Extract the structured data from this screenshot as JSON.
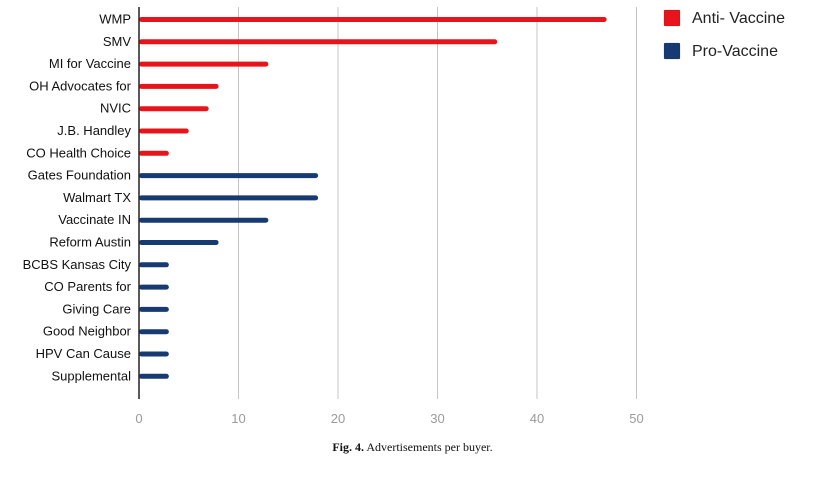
{
  "chart_data": {
    "type": "bar",
    "orientation": "horizontal",
    "categories": [
      "WMP",
      "SMV",
      "MI for Vaccine",
      "OH Advocates for",
      "NVIC",
      "J.B. Handley",
      "CO Health Choice",
      "Gates Foundation",
      "Walmart TX",
      "Vaccinate IN",
      "Reform Austin",
      "BCBS Kansas City",
      "CO Parents for",
      "Giving Care",
      "Good Neighbor",
      "HPV Can Cause",
      "Supplemental"
    ],
    "series": [
      {
        "name": "Anti- Vaccine",
        "color": "#e8141c",
        "values": [
          47,
          36,
          13,
          8,
          7,
          5,
          3,
          null,
          null,
          null,
          null,
          null,
          null,
          null,
          null,
          null,
          null
        ]
      },
      {
        "name": "Pro-Vaccine",
        "color": "#173a73",
        "values": [
          null,
          null,
          null,
          null,
          null,
          null,
          null,
          18,
          18,
          13,
          8,
          3,
          3,
          3,
          3,
          3,
          3
        ]
      }
    ],
    "xlim": [
      0,
      50
    ],
    "xticks": [
      "0",
      "10",
      "20",
      "30",
      "40",
      "50"
    ],
    "grid": true,
    "legend_position": "top-right"
  },
  "caption": {
    "figure_label": "Fig. 4.",
    "text": "Advertisements per buyer."
  }
}
